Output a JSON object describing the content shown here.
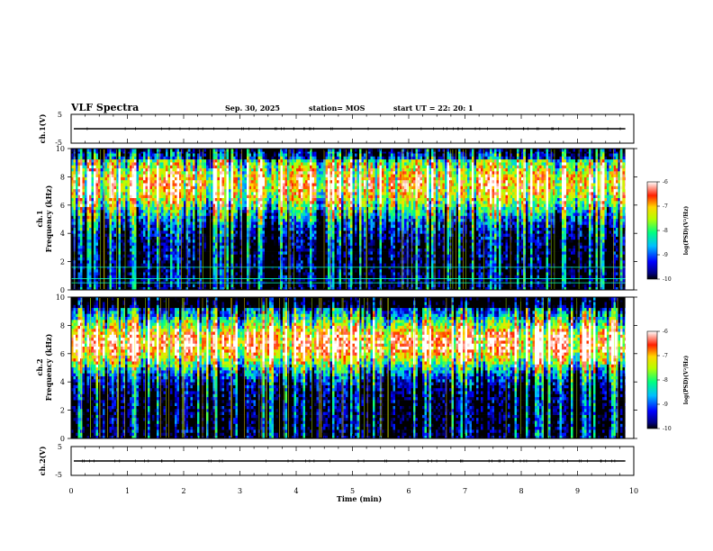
{
  "header": {
    "title": "VLF Spectra",
    "date": "Sep. 30, 2025",
    "station": "station= MOS",
    "start": "start  UT =   22: 20: 1"
  },
  "chart_data": [
    {
      "type": "line",
      "panel": "ch1-waveform",
      "ylabel": "ch.1(V)",
      "ylim": [
        -5,
        5
      ],
      "yticks": [
        5,
        -5
      ],
      "xlim": [
        0,
        10
      ],
      "baseline_value": 0
    },
    {
      "type": "heatmap",
      "panel": "ch1-spectrogram",
      "ylabel": "ch.1\nFrequency (kHz)",
      "ylim": [
        0,
        10
      ],
      "yticks": [
        0,
        2,
        4,
        6,
        8,
        10
      ],
      "xlim": [
        0,
        10
      ],
      "data_end_min": 9.85,
      "peak_band_khz": [
        6,
        9
      ],
      "horizontal_lines_khz": [
        0.5,
        0.8,
        1.6
      ],
      "colorbar": {
        "label": "log(PSD)(V²/Hz)",
        "ticks": [
          -6,
          -7,
          -8,
          -9,
          -10
        ],
        "range": [
          -10,
          -6
        ]
      }
    },
    {
      "type": "heatmap",
      "panel": "ch2-spectrogram",
      "ylabel": "ch.2\nFrequency (kHz)",
      "ylim": [
        0,
        10
      ],
      "yticks": [
        0,
        2,
        4,
        6,
        8,
        10
      ],
      "xlim": [
        0,
        10
      ],
      "data_end_min": 9.85,
      "peak_band_khz": [
        5.5,
        8
      ],
      "colorbar": {
        "label": "log(PSD)(V²/Hz)",
        "ticks": [
          -6,
          -7,
          -8,
          -9,
          -10
        ],
        "range": [
          -10,
          -6
        ]
      }
    },
    {
      "type": "line",
      "panel": "ch2-waveform",
      "ylabel": "ch.2(V)",
      "ylim": [
        -5,
        5
      ],
      "yticks": [
        5,
        -5
      ],
      "xlim": [
        0,
        10
      ],
      "baseline_value": 0
    }
  ],
  "xaxis": {
    "label": "Time  (min)",
    "ticks": [
      "0",
      "1",
      "2",
      "3",
      "4",
      "5",
      "6",
      "7",
      "8",
      "9",
      "10"
    ]
  }
}
